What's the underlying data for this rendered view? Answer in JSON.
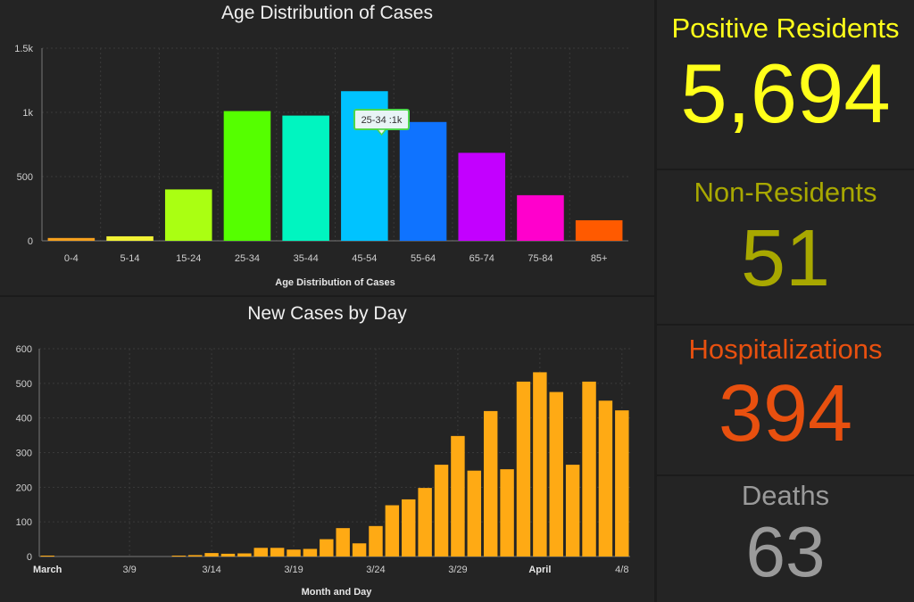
{
  "age_panel": {
    "title": "Age Distribution of Cases",
    "tooltip": "25-34 :1k"
  },
  "daily_panel": {
    "title": "New Cases by Day"
  },
  "stats": {
    "positive_residents": {
      "label": "Positive Residents",
      "value": "5,694",
      "color": "#ffff1a"
    },
    "non_residents": {
      "label": "Non-Residents",
      "value": "51",
      "color": "#a8a800"
    },
    "hospitalizations": {
      "label": "Hospitalizations",
      "value": "394",
      "color": "#e8500f"
    },
    "deaths": {
      "label": "Deaths",
      "value": "63",
      "color": "#9a9a9a"
    }
  },
  "chart_data": [
    {
      "type": "bar",
      "title": "Age Distribution of Cases",
      "xlabel": "Age Distribution of Cases",
      "ylabel": "",
      "ylim": [
        0,
        1500
      ],
      "yticks": [
        0,
        500,
        1000,
        1500
      ],
      "ytick_labels": [
        "0",
        "500",
        "1k",
        "1.5k"
      ],
      "categories": [
        "0-4",
        "5-14",
        "15-24",
        "25-34",
        "35-44",
        "45-54",
        "55-64",
        "65-74",
        "75-84",
        "85+"
      ],
      "values": [
        22,
        35,
        400,
        1010,
        975,
        1165,
        925,
        685,
        355,
        160
      ],
      "colors": [
        "#f5a01e",
        "#f2f235",
        "#aaff12",
        "#55ff00",
        "#00f5c0",
        "#00c3ff",
        "#0f73ff",
        "#c300ff",
        "#ff00cc",
        "#ff5a00"
      ],
      "grid": true
    },
    {
      "type": "bar",
      "title": "New Cases by Day",
      "xlabel": "Month and Day",
      "ylabel": "",
      "ylim": [
        0,
        600
      ],
      "yticks": [
        0,
        100,
        200,
        300,
        400,
        500,
        600
      ],
      "x": [
        "3/4",
        "3/5",
        "3/6",
        "3/7",
        "3/8",
        "3/9",
        "3/10",
        "3/11",
        "3/12",
        "3/13",
        "3/14",
        "3/15",
        "3/16",
        "3/17",
        "3/18",
        "3/19",
        "3/20",
        "3/21",
        "3/22",
        "3/23",
        "3/24",
        "3/25",
        "3/26",
        "3/27",
        "3/28",
        "3/29",
        "3/30",
        "3/31",
        "4/1",
        "4/2",
        "4/3",
        "4/4",
        "4/5",
        "4/6",
        "4/7",
        "4/8"
      ],
      "values": [
        1,
        0,
        0,
        0,
        0,
        0,
        0,
        0,
        2,
        4,
        10,
        8,
        9,
        25,
        25,
        20,
        22,
        50,
        82,
        38,
        88,
        148,
        165,
        198,
        265,
        348,
        248,
        420,
        252,
        505,
        532,
        475,
        265,
        505,
        450,
        422
      ],
      "xtick_labels": [
        {
          "label": "March",
          "index": 0,
          "bold": true
        },
        {
          "label": "3/9",
          "index": 5,
          "bold": false
        },
        {
          "label": "3/14",
          "index": 10,
          "bold": false
        },
        {
          "label": "3/19",
          "index": 15,
          "bold": false
        },
        {
          "label": "3/24",
          "index": 20,
          "bold": false
        },
        {
          "label": "3/29",
          "index": 25,
          "bold": false
        },
        {
          "label": "April",
          "index": 30,
          "bold": true
        },
        {
          "label": "4/8",
          "index": 35,
          "bold": false
        }
      ],
      "color": "#ffaa14",
      "grid": true
    }
  ]
}
